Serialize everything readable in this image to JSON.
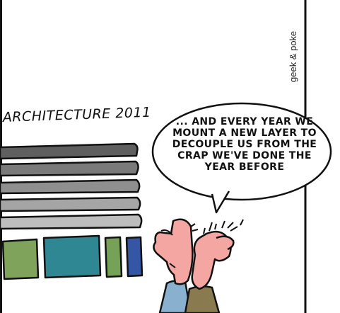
{
  "comic": {
    "credit": "geek & poke",
    "architecture_label": "ARCHITECTURE 2011",
    "speech_text": "... AND EVERY YEAR WE MOUNT A NEW LAYER TO DECOUPLE US FROM THE CRAP WE'VE DONE THE YEAR BEFORE"
  },
  "layers": {
    "count": 6,
    "colors": [
      "#5f5f5f",
      "#7a7a7a",
      "#8f8f8f",
      "#a5a5a5",
      "#bdbdbd",
      "#d2d2d2"
    ]
  },
  "base_blocks": {
    "colors": [
      "#7fa35a",
      "#2f8793",
      "#76a257",
      "#3456a5"
    ]
  },
  "characters": {
    "skin_color": "#f4a6a2",
    "shirt_left": "#8ab0cf",
    "shirt_right": "#8a7a4f"
  }
}
